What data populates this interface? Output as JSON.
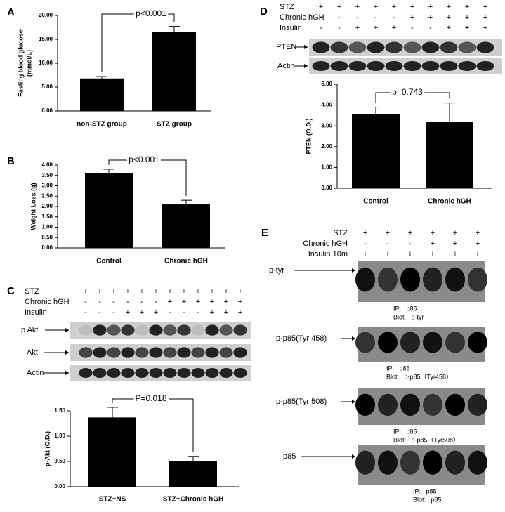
{
  "chart_data": [
    {
      "type": "bar",
      "panel_label": "A",
      "categories": [
        "non-STZ group",
        "STZ group"
      ],
      "values": [
        6.8,
        16.6
      ],
      "errors": [
        0.4,
        1.1
      ],
      "color": "#000000",
      "ylim": [
        0,
        20
      ],
      "yticks": [
        {
          "value": 0,
          "label": "0.00"
        },
        {
          "value": 5,
          "label": "5.00"
        },
        {
          "value": 10,
          "label": "10.00"
        },
        {
          "value": 15,
          "label": "15.00"
        },
        {
          "value": 20,
          "label": "20.00"
        }
      ],
      "ylabel": [
        "Fasting blood glucose",
        "(mmol/L)"
      ],
      "annotation": "p<0.001"
    },
    {
      "type": "bar",
      "panel_label": "B",
      "categories": [
        "Control",
        "Chronic hGH"
      ],
      "values": [
        3.6,
        2.1
      ],
      "errors": [
        0.2,
        0.2
      ],
      "color": "#000000",
      "ylim": [
        0,
        4
      ],
      "yticks": [
        {
          "value": 0,
          "label": "0.00"
        },
        {
          "value": 0.5,
          "label": "0.50"
        },
        {
          "value": 1,
          "label": "1.00"
        },
        {
          "value": 1.5,
          "label": "1.50"
        },
        {
          "value": 2,
          "label": "2.00"
        },
        {
          "value": 2.5,
          "label": "2.50"
        },
        {
          "value": 3,
          "label": "3.00"
        },
        {
          "value": 3.5,
          "label": "3.50"
        },
        {
          "value": 4,
          "label": "4.00"
        }
      ],
      "ylabel": [
        "Weight Loss (g)"
      ],
      "annotation": "p<0.001"
    },
    {
      "type": "bar",
      "panel_label": "C",
      "categories": [
        "STZ+NS",
        "STZ+Chronic hGH"
      ],
      "values": [
        1.37,
        0.5
      ],
      "errors": [
        0.2,
        0.1
      ],
      "color": "#000000",
      "ylim": [
        0,
        1.5
      ],
      "yticks": [
        {
          "value": 0,
          "label": "0.00"
        },
        {
          "value": 0.5,
          "label": "0.50"
        },
        {
          "value": 1,
          "label": "1.00"
        },
        {
          "value": 1.5,
          "label": "1.50"
        }
      ],
      "ylabel": [
        "p-Akt (O.D.)"
      ],
      "annotation": "P=0.018"
    },
    {
      "type": "bar",
      "panel_label": "D",
      "categories": [
        "Control",
        "Chronic hGH"
      ],
      "values": [
        3.55,
        3.2
      ],
      "errors": [
        0.35,
        0.9
      ],
      "color": "#000000",
      "ylim": [
        0,
        5
      ],
      "yticks": [
        {
          "value": 0,
          "label": "0.00"
        },
        {
          "value": 1,
          "label": "1.00"
        },
        {
          "value": 2,
          "label": "2.00"
        },
        {
          "value": 3,
          "label": "3.00"
        },
        {
          "value": 4,
          "label": "4.00"
        },
        {
          "value": 5,
          "label": "5.00"
        }
      ],
      "ylabel": [
        "PTEN (O.D.)"
      ],
      "annotation": "p=0.743"
    }
  ],
  "blots": {
    "C": {
      "rows": [
        {
          "label": "STZ",
          "signs": [
            "+",
            "+",
            "+",
            "+",
            "+",
            "+",
            "+",
            "+",
            "+",
            "+",
            "+",
            "+"
          ]
        },
        {
          "label": "Chronic hGH",
          "signs": [
            "-",
            "-",
            "-",
            "-",
            "-",
            "-",
            "+",
            "+",
            "+",
            "+",
            "+",
            "+"
          ]
        },
        {
          "label": "Insulin",
          "signs": [
            "-",
            "-",
            "-",
            "+",
            "+",
            "+",
            "-",
            "-",
            "-",
            "+",
            "+",
            "+"
          ]
        }
      ],
      "bands": [
        "p Akt",
        "Akt",
        "Actin"
      ]
    },
    "D": {
      "rows": [
        {
          "label": "STZ",
          "signs": [
            "+",
            "+",
            "+",
            "+",
            "+",
            "+",
            "+",
            "+",
            "+",
            "+"
          ]
        },
        {
          "label": "Chronic hGH",
          "signs": [
            "-",
            "-",
            "-",
            "-",
            "-",
            "+",
            "+",
            "+",
            "+",
            "+"
          ]
        },
        {
          "label": "Insulin",
          "signs": [
            "-",
            "-",
            "+",
            "+",
            "+",
            "-",
            "-",
            "+",
            "+",
            "+"
          ]
        }
      ],
      "bands": [
        "PTEN",
        "Actin"
      ]
    },
    "E": {
      "panel_label": "E",
      "rows": [
        {
          "label": "STZ",
          "signs": [
            "+",
            "+",
            "+",
            "+",
            "+",
            "+"
          ]
        },
        {
          "label": "Chronic hGH",
          "signs": [
            "-",
            "-",
            "-",
            "+",
            "+",
            "+"
          ]
        },
        {
          "label": "Insulin 10m",
          "signs": [
            "+",
            "+",
            "+",
            "+",
            "+",
            "+"
          ]
        }
      ],
      "bands": [
        {
          "label": "p-tyr",
          "ip": "IP:   p85",
          "blot": "Blot:   p-tyr"
        },
        {
          "label": "p-p85(Tyr 458)",
          "ip": "IP:   p85",
          "blot": "Blot:   p-p85（Tyr458）"
        },
        {
          "label": "p-p85(Tyr 508)",
          "ip": "IP:   p85",
          "blot": "Blot:   p-p85（Tyr508）"
        },
        {
          "label": "p85",
          "ip": "IP:   p85",
          "blot": "Blot:   p85"
        }
      ]
    }
  }
}
